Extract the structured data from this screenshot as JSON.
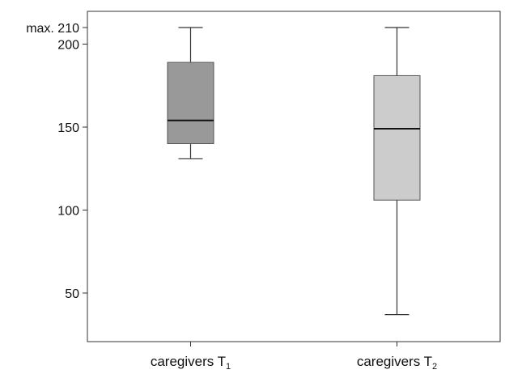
{
  "chart_data": {
    "type": "box",
    "ylim": [
      28,
      212
    ],
    "y_ticks": [
      {
        "value": 210,
        "label": "max. 210"
      },
      {
        "value": 200,
        "label": "200"
      },
      {
        "value": 150,
        "label": "150"
      },
      {
        "value": 100,
        "label": "100"
      },
      {
        "value": 50,
        "label": "50"
      }
    ],
    "categories": [
      {
        "name": "caregivers T",
        "subscript": "1"
      },
      {
        "name": "caregivers T",
        "subscript": "2"
      }
    ],
    "boxes": [
      {
        "min": 131,
        "q1": 140,
        "median": 154,
        "q3": 189,
        "max": 210,
        "color": "#999999"
      },
      {
        "min": 37,
        "q1": 106,
        "median": 149,
        "q3": 181,
        "max": 210,
        "color": "#cccccc"
      }
    ]
  }
}
